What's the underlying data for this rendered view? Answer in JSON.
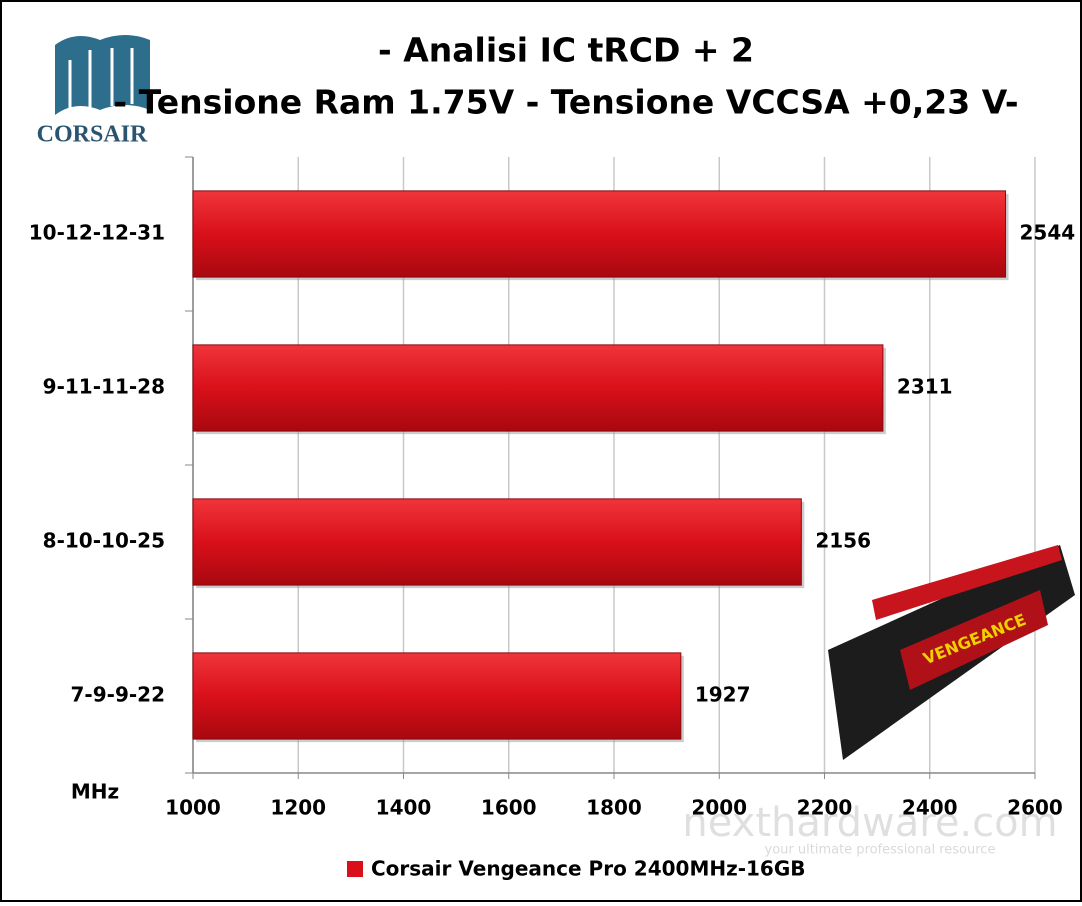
{
  "logo_text": "CORSAIR",
  "watermark": "nexthardware.com",
  "watermark_tagline": "your ultimate professional resource",
  "chart_data": {
    "type": "hbar",
    "title": "- Analisi IC  tRCD + 2",
    "subtitle": "- Tensione Ram 1.75V - Tensione VCCSA  +0,23 V-",
    "x_label": "MHz",
    "categories": [
      "10-12-12-31",
      "9-11-11-28",
      "8-10-10-25",
      "7-9-9-22"
    ],
    "series": [
      {
        "name": "Corsair Vengeance Pro 2400MHz-16GB",
        "color": "#d9101a",
        "values": [
          2544,
          2311,
          2156,
          1927
        ]
      }
    ],
    "xlim": [
      1000,
      2600
    ],
    "xticks": [
      1000,
      1200,
      1400,
      1600,
      1800,
      2000,
      2200,
      2400,
      2600
    ],
    "grid": true,
    "legend": "bottom"
  }
}
